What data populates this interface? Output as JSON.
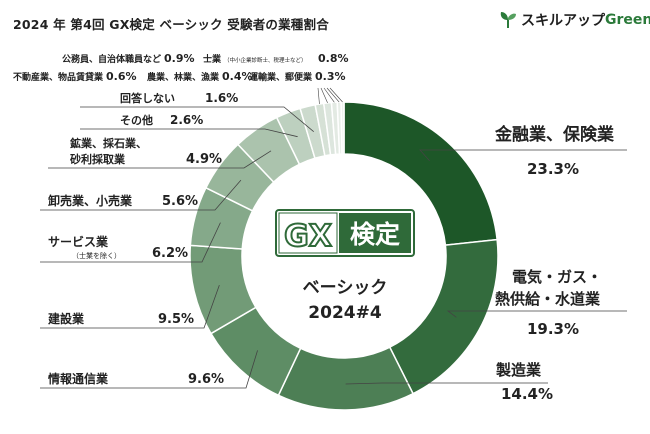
{
  "title": "2024 年 第4回 GX検定 ベーシック 受験者の業種割合",
  "brand": {
    "name": "スキルアップ",
    "accent": "Green",
    "icon": "sprout-icon"
  },
  "center": {
    "logo_gx": "GX",
    "logo_kentei": "検定",
    "subtitle": "ベーシック",
    "edition": "2024#4"
  },
  "small_items": [
    {
      "label": "公務員、自治体職員など",
      "pct": "0.9%"
    },
    {
      "label": "士業",
      "note": "（中小企業診断士、税理士など）",
      "pct": "0.8%"
    },
    {
      "label": "不動産業、物品賃貸業",
      "pct": "0.6%"
    },
    {
      "label": "農業、林業、漁業",
      "pct": "0.4%"
    },
    {
      "label": "運輸業、郵便業",
      "pct": "0.3%"
    }
  ],
  "chart_data": {
    "type": "pie",
    "donut": true,
    "start": "12 o'clock, clockwise",
    "slices": [
      {
        "label": "金融業、保険業",
        "value": 23.3,
        "pct_label": "23.3%",
        "color": "#1d5728"
      },
      {
        "label": "電気・ガス・熱供給・水道業",
        "value": 19.3,
        "pct_label": "19.3%",
        "color": "#336b3d"
      },
      {
        "label": "製造業",
        "value": 14.4,
        "pct_label": "14.4%",
        "color": "#4d7f55"
      },
      {
        "label": "情報通信業",
        "value": 9.6,
        "pct_label": "9.6%",
        "color": "#5e8d65"
      },
      {
        "label": "建設業",
        "value": 9.5,
        "pct_label": "9.5%",
        "color": "#729b77"
      },
      {
        "label": "サービス業",
        "note": "（士業を除く）",
        "value": 6.2,
        "pct_label": "6.2%",
        "color": "#85a98a"
      },
      {
        "label": "卸売業、小売業",
        "value": 5.6,
        "pct_label": "5.6%",
        "color": "#98b69b"
      },
      {
        "label": "鉱業、採石業、砂利採取業",
        "value": 4.9,
        "pct_label": "4.9%",
        "color": "#abc3ad"
      },
      {
        "label": "その他",
        "value": 2.6,
        "pct_label": "2.6%",
        "color": "#bdd0bf"
      },
      {
        "label": "回答しない",
        "value": 1.6,
        "pct_label": "1.6%",
        "color": "#ccdacd"
      },
      {
        "label": "公務員、自治体職員など",
        "value": 0.9,
        "color": "#d6e1d6"
      },
      {
        "label": "士業",
        "value": 0.8,
        "color": "#dde6de"
      },
      {
        "label": "不動産業、物品賃貸業",
        "value": 0.6,
        "color": "#e3eae3"
      },
      {
        "label": "農業、林業、漁業",
        "value": 0.4,
        "color": "#e8eee8"
      },
      {
        "label": "運輸業、郵便業",
        "value": 0.3,
        "color": "#edf2ed"
      }
    ]
  }
}
